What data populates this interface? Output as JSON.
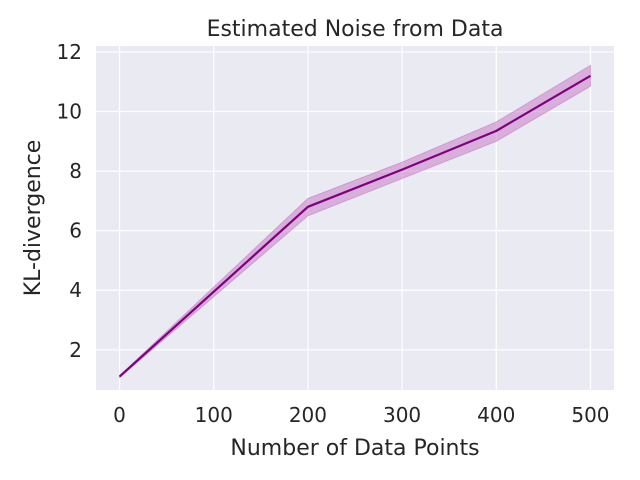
{
  "chart_data": {
    "type": "line",
    "title": "Estimated Noise from Data",
    "xlabel": "Number of Data Points",
    "ylabel": "KL-divergence",
    "xlim": [
      -25,
      525
    ],
    "ylim": [
      0.65,
      12.2
    ],
    "xticks": [
      0,
      100,
      200,
      300,
      400,
      500
    ],
    "yticks": [
      2,
      4,
      6,
      8,
      10,
      12
    ],
    "grid": true,
    "background_color": "#eaeaf2",
    "series": [
      {
        "color": "#800080",
        "band_color": "#c77dc7",
        "x": [
          0,
          200,
          300,
          400,
          500
        ],
        "y": [
          1.1,
          6.8,
          8.05,
          9.35,
          11.2
        ],
        "y_lower": [
          1.07,
          6.5,
          7.75,
          9.0,
          10.85
        ],
        "y_upper": [
          1.13,
          7.08,
          8.3,
          9.65,
          11.55
        ]
      }
    ]
  }
}
